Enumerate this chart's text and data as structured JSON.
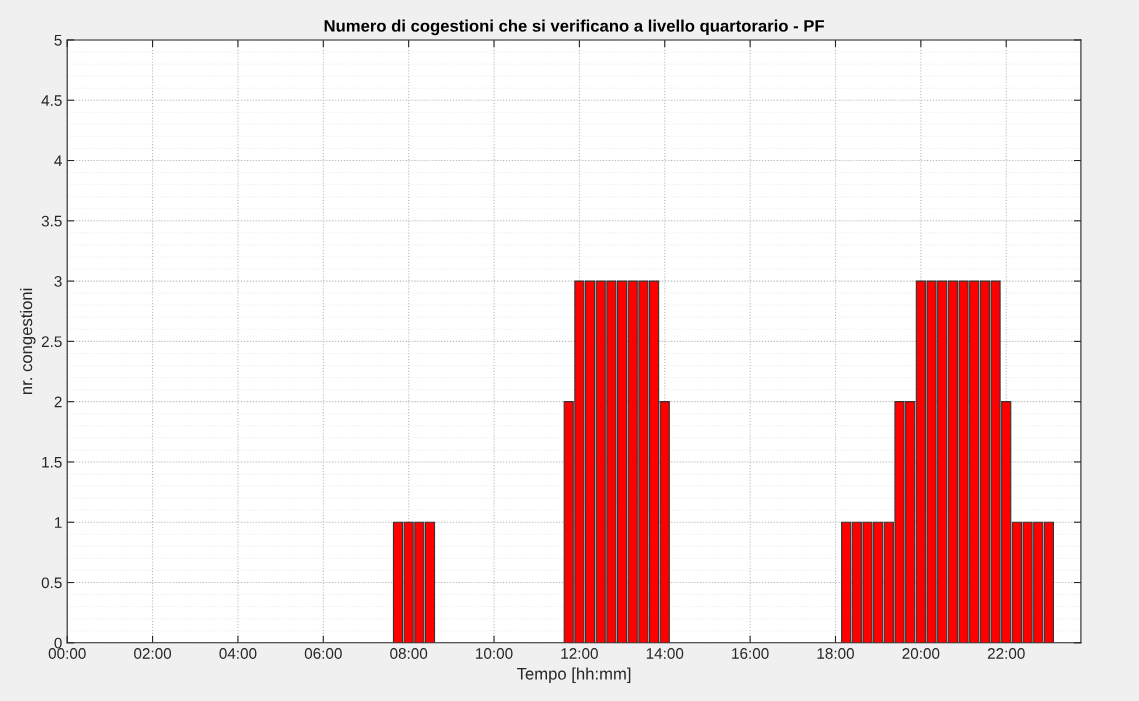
{
  "chart_data": {
    "type": "bar",
    "title": "Numero di cogestioni che si verificano a livello quartorario - PF",
    "xlabel": "Tempo [hh:mm]",
    "ylabel": "nr. congestioni",
    "x": [
      7.75,
      8.0,
      8.25,
      8.5,
      11.75,
      12.0,
      12.25,
      12.5,
      12.75,
      13.0,
      13.25,
      13.5,
      13.75,
      14.0,
      18.25,
      18.5,
      18.75,
      19.0,
      19.25,
      19.5,
      19.75,
      20.0,
      20.25,
      20.5,
      20.75,
      21.0,
      21.25,
      21.5,
      21.75,
      22.0,
      22.25,
      22.5,
      22.75,
      23.0
    ],
    "values": [
      1,
      1,
      1,
      1,
      2,
      3,
      3,
      3,
      3,
      3,
      3,
      3,
      3,
      2,
      1,
      1,
      1,
      1,
      1,
      2,
      2,
      3,
      3,
      3,
      3,
      3,
      3,
      3,
      3,
      2,
      1,
      1,
      1,
      1
    ],
    "color": "#ff0000",
    "xlim": [
      0,
      23.75
    ],
    "xticks": [
      {
        "value": 0,
        "label": "00:00"
      },
      {
        "value": 2,
        "label": "02:00"
      },
      {
        "value": 4,
        "label": "04:00"
      },
      {
        "value": 6,
        "label": "06:00"
      },
      {
        "value": 8,
        "label": "08:00"
      },
      {
        "value": 10,
        "label": "10:00"
      },
      {
        "value": 12,
        "label": "12:00"
      },
      {
        "value": 14,
        "label": "14:00"
      },
      {
        "value": 16,
        "label": "16:00"
      },
      {
        "value": 18,
        "label": "18:00"
      },
      {
        "value": 20,
        "label": "20:00"
      },
      {
        "value": 22,
        "label": "22:00"
      }
    ],
    "ylim": [
      0,
      5
    ],
    "yticks": [
      0,
      0.5,
      1,
      1.5,
      2,
      2.5,
      3,
      3.5,
      4,
      4.5,
      5
    ],
    "grid": true,
    "legend": false
  }
}
